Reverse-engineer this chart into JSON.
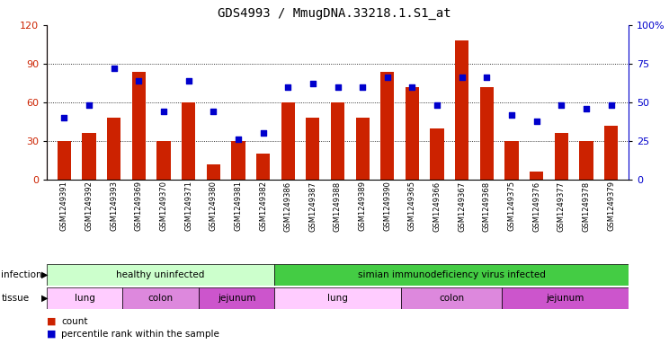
{
  "title": "GDS4993 / MmugDNA.33218.1.S1_at",
  "samples": [
    "GSM1249391",
    "GSM1249392",
    "GSM1249393",
    "GSM1249369",
    "GSM1249370",
    "GSM1249371",
    "GSM1249380",
    "GSM1249381",
    "GSM1249382",
    "GSM1249386",
    "GSM1249387",
    "GSM1249388",
    "GSM1249389",
    "GSM1249390",
    "GSM1249365",
    "GSM1249366",
    "GSM1249367",
    "GSM1249368",
    "GSM1249375",
    "GSM1249376",
    "GSM1249377",
    "GSM1249378",
    "GSM1249379"
  ],
  "counts": [
    30,
    36,
    48,
    84,
    30,
    60,
    12,
    30,
    20,
    60,
    48,
    60,
    48,
    84,
    72,
    40,
    108,
    72,
    30,
    6,
    36,
    30,
    42
  ],
  "percentiles": [
    40,
    48,
    72,
    64,
    44,
    64,
    44,
    26,
    30,
    60,
    62,
    60,
    60,
    66,
    60,
    48,
    66,
    66,
    42,
    38,
    48,
    46,
    48
  ],
  "bar_color": "#cc2200",
  "dot_color": "#0000cc",
  "left_ylim": [
    0,
    120
  ],
  "right_ylim": [
    0,
    100
  ],
  "left_yticks": [
    0,
    30,
    60,
    90,
    120
  ],
  "right_yticks": [
    0,
    25,
    50,
    75,
    100
  ],
  "right_yticklabels": [
    "0",
    "25",
    "50",
    "75",
    "100%"
  ],
  "infection_groups": [
    {
      "label": "healthy uninfected",
      "start": 0,
      "end": 9,
      "color": "#ccffcc"
    },
    {
      "label": "simian immunodeficiency virus infected",
      "start": 9,
      "end": 23,
      "color": "#44cc44"
    }
  ],
  "tissue_groups": [
    {
      "label": "lung",
      "start": 0,
      "end": 3,
      "color": "#ffccff"
    },
    {
      "label": "colon",
      "start": 3,
      "end": 6,
      "color": "#dd88dd"
    },
    {
      "label": "jejunum",
      "start": 6,
      "end": 9,
      "color": "#cc55cc"
    },
    {
      "label": "lung",
      "start": 9,
      "end": 14,
      "color": "#ffccff"
    },
    {
      "label": "colon",
      "start": 14,
      "end": 18,
      "color": "#dd88dd"
    },
    {
      "label": "jejunum",
      "start": 18,
      "end": 23,
      "color": "#cc55cc"
    }
  ],
  "infection_label": "infection",
  "tissue_label": "tissue",
  "legend_count": "count",
  "legend_percentile": "percentile rank within the sample",
  "bg_color": "#ffffff",
  "plot_bg_color": "#ffffff",
  "title_fontsize": 10,
  "bar_width": 0.55
}
